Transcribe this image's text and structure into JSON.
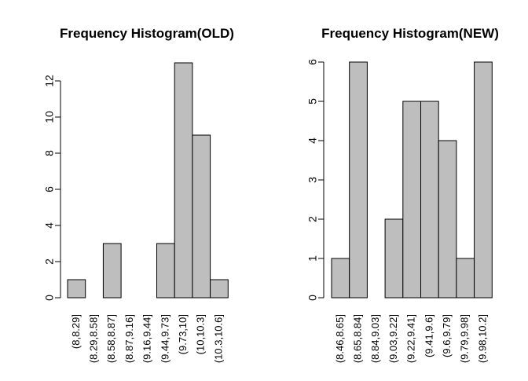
{
  "colors": {
    "background": "#ffffff",
    "bar_fill": "#bebebe",
    "bar_stroke": "#000000",
    "axis": "#000000"
  },
  "chart_data": [
    {
      "type": "bar",
      "title": "Frequency Histogram(OLD)",
      "xlabel": "",
      "ylabel": "",
      "categories": [
        "(8,8.29]",
        "(8.29,8.58]",
        "(8.58,8.87]",
        "(8.87,9.16]",
        "(9.16,9.44]",
        "(9.44,9.73]",
        "(9.73,10]",
        "(10,10.3]",
        "(10.3,10.6]"
      ],
      "values": [
        1,
        0,
        3,
        0,
        0,
        3,
        13,
        9,
        1
      ],
      "ylim": [
        0,
        13
      ],
      "yticks": [
        0,
        2,
        4,
        6,
        8,
        10,
        12
      ],
      "grid": false,
      "legend": "none"
    },
    {
      "type": "bar",
      "title": "Frequency Histogram(NEW)",
      "xlabel": "",
      "ylabel": "",
      "categories": [
        "(8.46,8.65]",
        "(8.65,8.84]",
        "(8.84,9.03]",
        "(9.03,9.22]",
        "(9.22,9.41]",
        "(9.41,9.6]",
        "(9.6,9.79]",
        "(9.79,9.98]",
        "(9.98,10.2]"
      ],
      "values": [
        1,
        6,
        0,
        2,
        5,
        5,
        4,
        1,
        6
      ],
      "ylim": [
        0,
        6
      ],
      "yticks": [
        0,
        1,
        2,
        3,
        4,
        5,
        6
      ],
      "grid": false,
      "legend": "none"
    }
  ]
}
